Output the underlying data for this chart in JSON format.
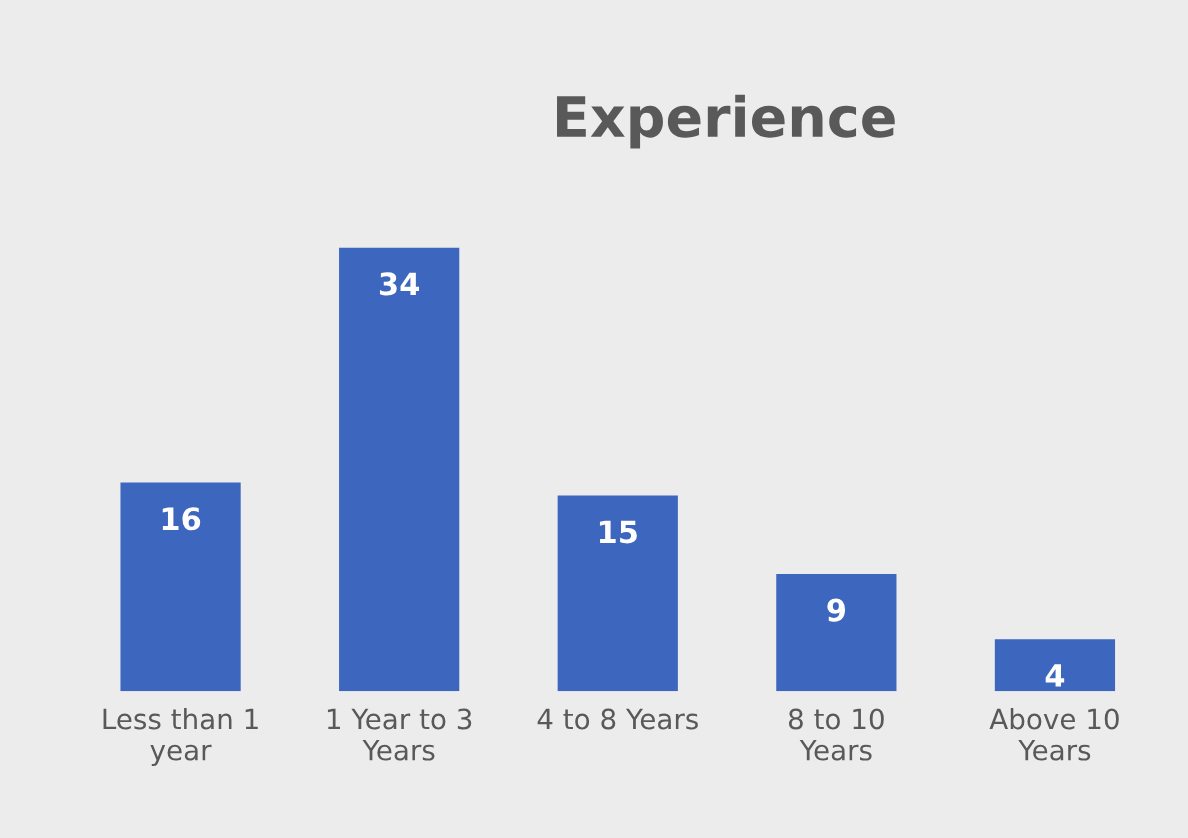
{
  "chart_data": {
    "type": "bar",
    "title": "Experience",
    "categories": [
      "Less than 1\nyear",
      "1 Year to 3\nYears",
      "4 to 8 Years",
      "8 to 10\nYears",
      "Above 10\nYears"
    ],
    "values": [
      16,
      34,
      15,
      9,
      4
    ],
    "color": "#3d66bf",
    "data_labels": true
  }
}
